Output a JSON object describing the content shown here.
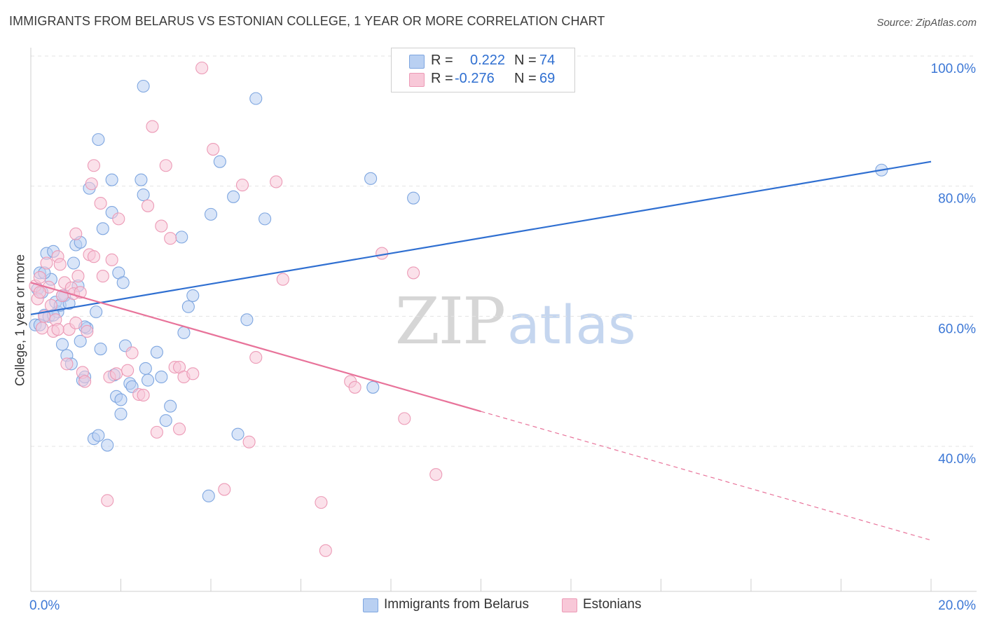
{
  "title": "IMMIGRANTS FROM BELARUS VS ESTONIAN COLLEGE, 1 YEAR OR MORE CORRELATION CHART",
  "source": "Source: ZipAtlas.com",
  "watermark": "ZIPatlas",
  "colors": {
    "blue": "#2f6fd1",
    "blue_fill": "#b9d0f2",
    "pink": "#e8739a",
    "pink_fill": "#f8c8d8",
    "grid": "#e3e3e3",
    "axis_text": "#3d78d6"
  },
  "legend": {
    "rows": [
      {
        "r_label": "R =",
        "r_value": "0.222",
        "n_label": "N =",
        "n_value": "74"
      },
      {
        "r_label": "R =",
        "r_value": "-0.276",
        "n_label": "N =",
        "n_value": "69"
      }
    ],
    "bottom": [
      "Immigrants from Belarus",
      "Estonians"
    ]
  },
  "chart_data": {
    "type": "scatter",
    "ylabel": "College, 1 year or more",
    "xlabel": "",
    "xlim": [
      0,
      20
    ],
    "ylim": [
      20,
      100
    ],
    "y_ticks": [
      {
        "v": 100,
        "label": "100.0%"
      },
      {
        "v": 80,
        "label": "80.0%"
      },
      {
        "v": 60,
        "label": "60.0%"
      },
      {
        "v": 40,
        "label": "40.0%"
      }
    ],
    "x_tick_labels": [
      {
        "v": 0,
        "label": "0.0%"
      },
      {
        "v": 20,
        "label": "20.0%"
      }
    ],
    "x_minor_ticks": [
      2,
      4,
      6,
      8,
      10,
      12,
      14,
      16,
      18,
      20
    ],
    "grid": true,
    "series": [
      {
        "name": "Immigrants from Belarus",
        "color": "#2f6fd1",
        "trend": {
          "x0": 0,
          "y0": 62.1,
          "x1": 20,
          "y1": 85.6,
          "dashed_from": null
        },
        "points": [
          [
            0.1,
            60.5
          ],
          [
            0.15,
            66.0
          ],
          [
            0.2,
            68.5
          ],
          [
            0.25,
            65.5
          ],
          [
            0.3,
            62.0
          ],
          [
            0.35,
            71.5
          ],
          [
            0.4,
            61.8
          ],
          [
            0.45,
            67.5
          ],
          [
            0.5,
            71.8
          ],
          [
            0.55,
            64.0
          ],
          [
            0.6,
            62.5
          ],
          [
            0.65,
            63.5
          ],
          [
            0.7,
            57.5
          ],
          [
            0.75,
            65.0
          ],
          [
            0.8,
            55.8
          ],
          [
            0.85,
            63.8
          ],
          [
            0.9,
            54.5
          ],
          [
            0.95,
            70.0
          ],
          [
            1.0,
            72.8
          ],
          [
            1.05,
            66.5
          ],
          [
            1.1,
            73.2
          ],
          [
            1.1,
            58.0
          ],
          [
            1.15,
            52.0
          ],
          [
            1.2,
            52.5
          ],
          [
            1.25,
            60.0
          ],
          [
            1.3,
            81.5
          ],
          [
            1.4,
            43.0
          ],
          [
            1.45,
            62.5
          ],
          [
            1.5,
            89.0
          ],
          [
            1.5,
            43.5
          ],
          [
            1.55,
            56.8
          ],
          [
            1.6,
            75.3
          ],
          [
            1.7,
            42.0
          ],
          [
            1.8,
            77.8
          ],
          [
            1.8,
            82.8
          ],
          [
            1.85,
            52.8
          ],
          [
            1.9,
            49.5
          ],
          [
            1.95,
            68.5
          ],
          [
            2.0,
            46.8
          ],
          [
            2.05,
            67.0
          ],
          [
            2.1,
            57.3
          ],
          [
            2.2,
            51.5
          ],
          [
            2.25,
            51.0
          ],
          [
            2.45,
            82.8
          ],
          [
            2.5,
            97.2
          ],
          [
            2.5,
            80.5
          ],
          [
            2.55,
            53.8
          ],
          [
            2.6,
            52.0
          ],
          [
            2.8,
            56.3
          ],
          [
            2.9,
            52.5
          ],
          [
            3.0,
            45.8
          ],
          [
            3.1,
            48.0
          ],
          [
            3.35,
            74.0
          ],
          [
            3.4,
            59.3
          ],
          [
            3.5,
            63.3
          ],
          [
            3.6,
            65.0
          ],
          [
            3.95,
            34.2
          ],
          [
            4.0,
            77.5
          ],
          [
            4.2,
            85.6
          ],
          [
            4.5,
            80.2
          ],
          [
            4.6,
            43.7
          ],
          [
            4.8,
            61.3
          ],
          [
            5.0,
            95.3
          ],
          [
            5.2,
            76.8
          ],
          [
            7.55,
            83.0
          ],
          [
            7.6,
            50.9
          ],
          [
            8.5,
            80.0
          ],
          [
            18.9,
            84.3
          ],
          [
            0.2,
            60.5
          ],
          [
            0.3,
            68.5
          ],
          [
            0.5,
            62.0
          ],
          [
            0.7,
            65.0
          ],
          [
            1.2,
            60.2
          ],
          [
            2.0,
            49.0
          ]
        ]
      },
      {
        "name": "Estonians",
        "color": "#e8739a",
        "trend": {
          "x0": 0,
          "y0": 67.0,
          "x1": 20,
          "y1": 27.4,
          "dashed_from": 10.0
        },
        "points": [
          [
            0.1,
            66.5
          ],
          [
            0.15,
            64.5
          ],
          [
            0.2,
            67.8
          ],
          [
            0.25,
            60.0
          ],
          [
            0.3,
            61.8
          ],
          [
            0.35,
            70.0
          ],
          [
            0.4,
            66.3
          ],
          [
            0.45,
            63.5
          ],
          [
            0.5,
            59.5
          ],
          [
            0.55,
            61.3
          ],
          [
            0.6,
            71.0
          ],
          [
            0.65,
            69.8
          ],
          [
            0.7,
            65.0
          ],
          [
            0.75,
            67.0
          ],
          [
            0.8,
            54.5
          ],
          [
            0.85,
            59.8
          ],
          [
            0.9,
            66.2
          ],
          [
            0.95,
            65.3
          ],
          [
            1.0,
            74.5
          ],
          [
            1.05,
            68.0
          ],
          [
            1.1,
            65.5
          ],
          [
            1.15,
            53.2
          ],
          [
            1.2,
            51.8
          ],
          [
            1.25,
            59.5
          ],
          [
            1.3,
            71.3
          ],
          [
            1.35,
            82.2
          ],
          [
            1.4,
            71.0
          ],
          [
            1.4,
            85.0
          ],
          [
            1.55,
            79.2
          ],
          [
            1.6,
            68.0
          ],
          [
            1.7,
            33.5
          ],
          [
            1.75,
            52.5
          ],
          [
            1.8,
            70.5
          ],
          [
            1.9,
            53.0
          ],
          [
            1.95,
            76.8
          ],
          [
            2.15,
            53.5
          ],
          [
            2.25,
            56.2
          ],
          [
            2.4,
            49.8
          ],
          [
            2.5,
            49.7
          ],
          [
            2.6,
            78.8
          ],
          [
            2.7,
            91.0
          ],
          [
            2.8,
            44.0
          ],
          [
            2.9,
            75.7
          ],
          [
            3.0,
            85.0
          ],
          [
            3.1,
            73.8
          ],
          [
            3.2,
            54.0
          ],
          [
            3.3,
            54.0
          ],
          [
            3.3,
            44.5
          ],
          [
            3.4,
            52.5
          ],
          [
            3.6,
            53.0
          ],
          [
            3.8,
            100.0
          ],
          [
            4.05,
            87.5
          ],
          [
            4.3,
            35.2
          ],
          [
            4.7,
            82.0
          ],
          [
            4.85,
            42.5
          ],
          [
            5.0,
            55.5
          ],
          [
            5.45,
            82.5
          ],
          [
            5.6,
            67.5
          ],
          [
            6.45,
            33.2
          ],
          [
            6.55,
            25.8
          ],
          [
            7.1,
            51.8
          ],
          [
            7.2,
            50.9
          ],
          [
            7.8,
            71.5
          ],
          [
            8.3,
            46.1
          ],
          [
            8.5,
            68.5
          ],
          [
            9.0,
            37.5
          ],
          [
            0.2,
            65.5
          ],
          [
            0.6,
            59.8
          ],
          [
            1.0,
            60.8
          ]
        ]
      }
    ]
  }
}
